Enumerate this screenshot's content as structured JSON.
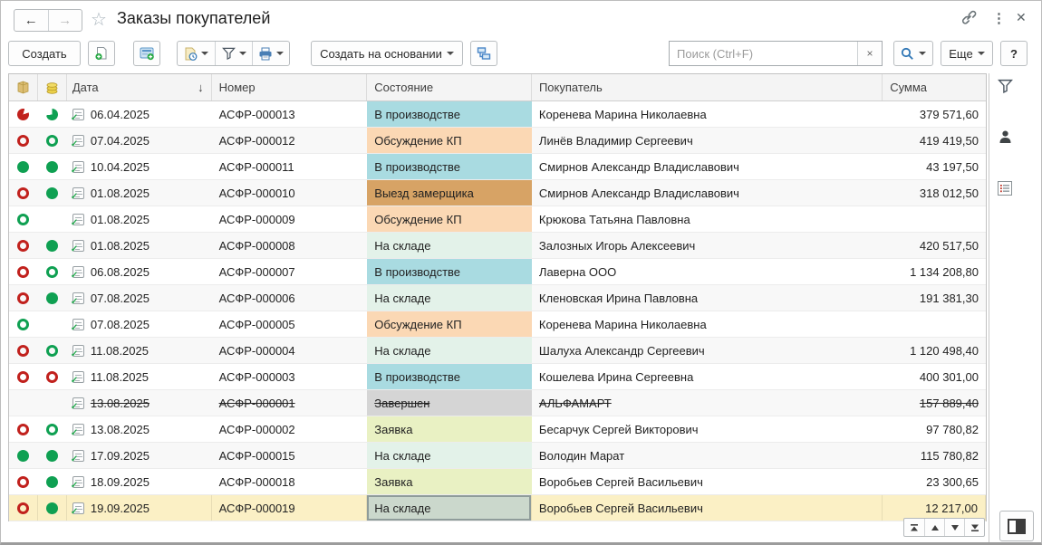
{
  "titlebar": {
    "title": "Заказы покупателей"
  },
  "toolbar": {
    "create": "Создать",
    "create_based": "Создать на основании",
    "more": "Еще",
    "help": "?",
    "search_placeholder": "Поиск (Ctrl+F)",
    "search_value": "",
    "clear": "×"
  },
  "table": {
    "sort_arrow": "↓",
    "columns": {
      "date": "Дата",
      "number": "Номер",
      "state": "Состояние",
      "buyer": "Покупатель",
      "sum": "Сумма"
    },
    "rows": [
      {
        "icon1": "pie-red",
        "icon2": "pie-green",
        "date": "06.04.2025",
        "number": "АСФР-000013",
        "state": "В производстве",
        "state_key": "production",
        "buyer": "Коренева Марина Николаевна",
        "sum": "379 571,60",
        "crossed": false,
        "selected": false
      },
      {
        "icon1": "ring-red",
        "icon2": "ring-green",
        "date": "07.04.2025",
        "number": "АСФР-000012",
        "state": "Обсуждение КП",
        "state_key": "discussion",
        "buyer": "Линёв Владимир Сергеевич",
        "sum": "419 419,50",
        "crossed": false,
        "selected": false
      },
      {
        "icon1": "dot-green",
        "icon2": "dot-green",
        "date": "10.04.2025",
        "number": "АСФР-000011",
        "state": "В производстве",
        "state_key": "production",
        "buyer": "Смирнов Александр Владиславович",
        "sum": "43 197,50",
        "crossed": false,
        "selected": false
      },
      {
        "icon1": "ring-red",
        "icon2": "dot-green",
        "date": "01.08.2025",
        "number": "АСФР-000010",
        "state": "Выезд замерщика",
        "state_key": "measure",
        "buyer": "Смирнов Александр Владиславович",
        "sum": "318 012,50",
        "crossed": false,
        "selected": false
      },
      {
        "icon1": "ring-green",
        "icon2": "none",
        "date": "01.08.2025",
        "number": "АСФР-000009",
        "state": "Обсуждение КП",
        "state_key": "discussion",
        "buyer": "Крюкова Татьяна Павловна",
        "sum": "",
        "crossed": false,
        "selected": false
      },
      {
        "icon1": "ring-red",
        "icon2": "dot-green",
        "date": "01.08.2025",
        "number": "АСФР-000008",
        "state": "На складе",
        "state_key": "stock",
        "buyer": "Залозных Игорь Алексеевич",
        "sum": "420 517,50",
        "crossed": false,
        "selected": false
      },
      {
        "icon1": "ring-red",
        "icon2": "ring-green",
        "date": "06.08.2025",
        "number": "АСФР-000007",
        "state": "В производстве",
        "state_key": "production",
        "buyer": "Лаверна ООО",
        "sum": "1 134 208,80",
        "crossed": false,
        "selected": false
      },
      {
        "icon1": "ring-red",
        "icon2": "dot-green",
        "date": "07.08.2025",
        "number": "АСФР-000006",
        "state": "На складе",
        "state_key": "stock",
        "buyer": "Кленовская Ирина Павловна",
        "sum": "191 381,30",
        "crossed": false,
        "selected": false
      },
      {
        "icon1": "ring-green",
        "icon2": "none",
        "date": "07.08.2025",
        "number": "АСФР-000005",
        "state": "Обсуждение КП",
        "state_key": "discussion",
        "buyer": "Коренева Марина Николаевна",
        "sum": "",
        "crossed": false,
        "selected": false
      },
      {
        "icon1": "ring-red",
        "icon2": "ring-green",
        "date": "11.08.2025",
        "number": "АСФР-000004",
        "state": "На складе",
        "state_key": "stock",
        "buyer": "Шалуха Александр Сергеевич",
        "sum": "1 120 498,40",
        "crossed": false,
        "selected": false
      },
      {
        "icon1": "ring-red",
        "icon2": "ring-red",
        "date": "11.08.2025",
        "number": "АСФР-000003",
        "state": "В производстве",
        "state_key": "production",
        "buyer": "Кошелева Ирина Сергеевна",
        "sum": "400 301,00",
        "crossed": false,
        "selected": false
      },
      {
        "icon1": "none",
        "icon2": "none",
        "date": "13.08.2025",
        "number": "АСФР-000001",
        "state": "Завершен",
        "state_key": "done",
        "buyer": "АЛЬФАМАРТ",
        "sum": "157 889,40",
        "crossed": true,
        "selected": false
      },
      {
        "icon1": "ring-red",
        "icon2": "ring-green",
        "date": "13.08.2025",
        "number": "АСФР-000002",
        "state": "Заявка",
        "state_key": "request",
        "buyer": "Бесарчук Сергей Викторович",
        "sum": "97 780,82",
        "crossed": false,
        "selected": false
      },
      {
        "icon1": "dot-green",
        "icon2": "dot-green",
        "date": "17.09.2025",
        "number": "АСФР-000015",
        "state": "На складе",
        "state_key": "stock",
        "buyer": "Володин Марат",
        "sum": "115 780,82",
        "crossed": false,
        "selected": false
      },
      {
        "icon1": "ring-red",
        "icon2": "dot-green",
        "date": "18.09.2025",
        "number": "АСФР-000018",
        "state": "Заявка",
        "state_key": "request",
        "buyer": "Воробьев Сергей Васильевич",
        "sum": "23 300,65",
        "crossed": false,
        "selected": false
      },
      {
        "icon1": "ring-red",
        "icon2": "dot-green",
        "date": "19.09.2025",
        "number": "АСФР-000019",
        "state": "На складе",
        "state_key": "stock",
        "buyer": "Воробьев Сергей Васильевич",
        "sum": "12 217,00",
        "crossed": false,
        "selected": true
      }
    ]
  },
  "status_colors": {
    "production": "#a9dbe1",
    "discussion": "#fbd8b4",
    "measure": "#d7a365",
    "stock": "#e3f2e9",
    "request": "#e9f1c3",
    "done": "#d5d5d5"
  },
  "colors": {
    "selected_row": "#fbf0c5",
    "selected_cell": "#cbd8cc",
    "selected_cell_border": "#8f9c9a",
    "accent_blue": "#2f76b5",
    "status_red": "#c1211d",
    "status_green": "#0fa052"
  }
}
